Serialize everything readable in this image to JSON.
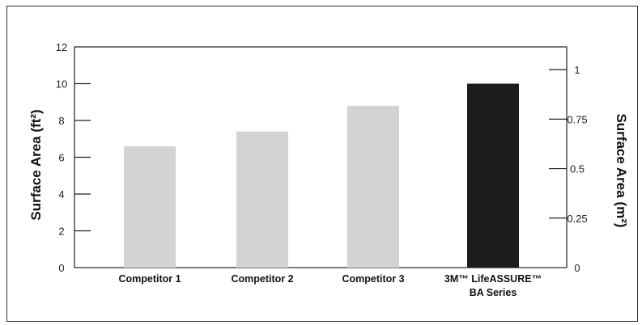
{
  "chart_data": {
    "type": "bar",
    "categories": [
      [
        "Competitor 1"
      ],
      [
        "Competitor 2"
      ],
      [
        "Competitor 3"
      ],
      [
        "3M™ LifeASSURE™",
        "BA Series"
      ]
    ],
    "series": [
      {
        "values": [
          6.6,
          7.4,
          8.8,
          10.0
        ],
        "colors": [
          "#d3d3d3",
          "#d3d3d3",
          "#d3d3d3",
          "#1c1c1c"
        ]
      }
    ],
    "y_left": {
      "label": "Surface Area (ft²)",
      "ylim": [
        0,
        12
      ],
      "ticks": [
        "0",
        "2",
        "4",
        "6",
        "8",
        "10",
        "12"
      ]
    },
    "y_right": {
      "label": "Surface Area (m²)",
      "ylim": [
        0,
        1.11483
      ],
      "ticks": [
        "0",
        "0.25",
        "0.5",
        "0.75",
        "1"
      ]
    },
    "grid": false,
    "legend": "none"
  }
}
